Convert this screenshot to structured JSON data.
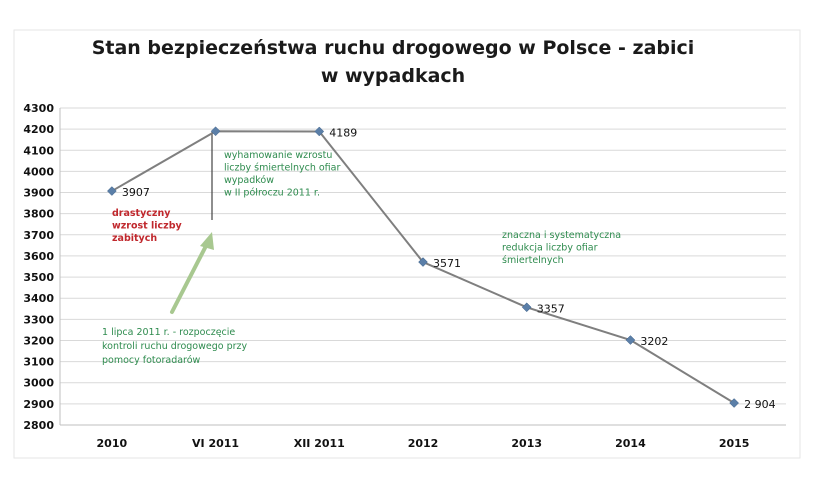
{
  "chart_data": {
    "type": "line",
    "title_lines": [
      "Stan bezpieczeństwa ruchu drogowego w Polsce - zabici",
      "w wypadkach"
    ],
    "categories": [
      "2010",
      "VI 2011",
      "XII 2011",
      "2012",
      "2013",
      "2014",
      "2015"
    ],
    "series": [
      {
        "name": "zabici w wypadkach",
        "values": [
          3907,
          4190,
          4189,
          3571,
          3357,
          3202,
          2904
        ],
        "color": "#7f7f7f",
        "marker_color": "#5b7fa8"
      }
    ],
    "data_labels": [
      "3907",
      "",
      "4189",
      "3571",
      "3357",
      "3202",
      "2 904"
    ],
    "ylim": [
      2800,
      4300
    ],
    "yticks": [
      2800,
      2900,
      3000,
      3100,
      3200,
      3300,
      3400,
      3500,
      3600,
      3700,
      3800,
      3900,
      4000,
      4100,
      4200,
      4300
    ],
    "grid": true,
    "xlabel": "",
    "ylabel": "",
    "annotations": [
      {
        "id": "drastic",
        "lines": [
          "drastyczny",
          "wzrost liczby",
          "zabitych"
        ],
        "color": "#c0282d"
      },
      {
        "id": "slowdown",
        "lines": [
          "wyhamowanie wzrostu",
          "liczby śmiertelnych ofiar",
          "wypadków",
          "w II półroczu 2011 r."
        ],
        "color": "#2e8b4e"
      },
      {
        "id": "decline",
        "lines": [
          "znaczna i systematyczna",
          "redukcja liczby ofiar",
          "śmiertelnych"
        ],
        "color": "#2e8b4e"
      },
      {
        "id": "cameras",
        "lines": [
          "1 lipca 2011 r. - rozpoczęcie",
          "kontroli ruchu drogowego przy",
          "pomocy fotoradarów"
        ],
        "color": "#2e8b4e"
      }
    ],
    "colors": {
      "grid": "#d9d9d9",
      "axis": "#bfbfbf",
      "marker_line": "#444444",
      "arrow": "#a8c890"
    }
  }
}
